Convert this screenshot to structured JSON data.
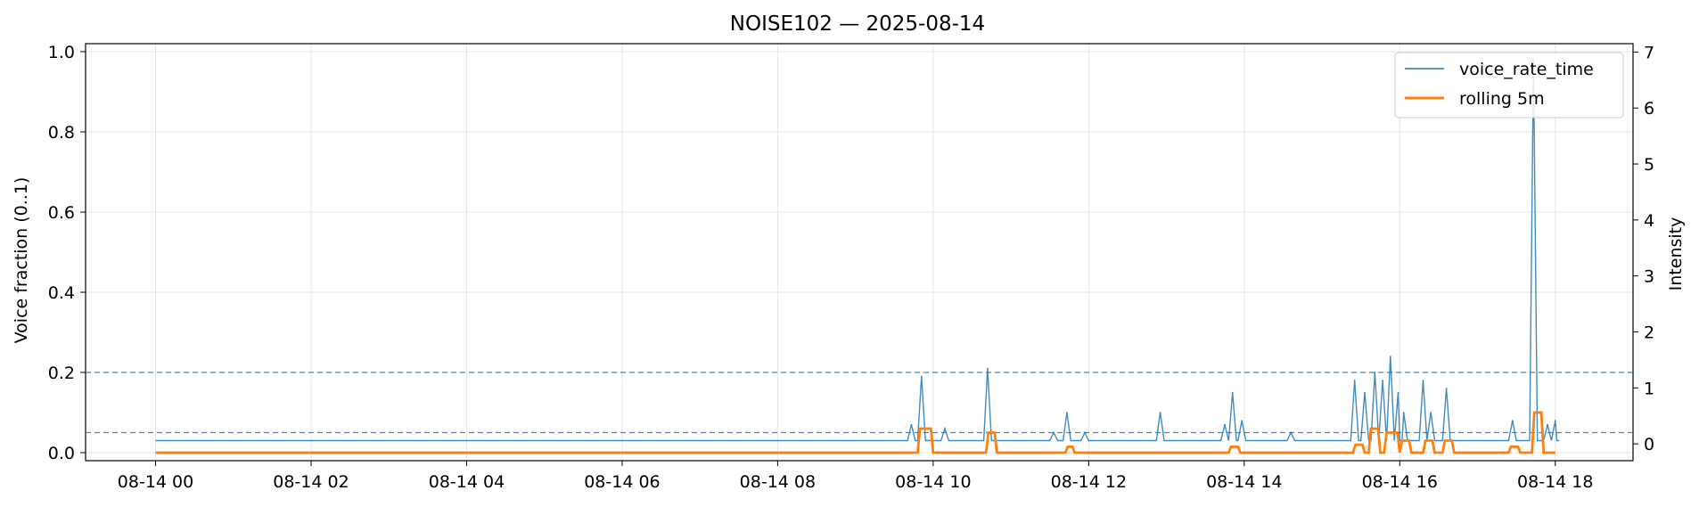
{
  "chart_data": {
    "type": "line",
    "title": "NOISE102 — 2025-08-14",
    "ylabel_left": "Voice fraction (0..1)",
    "ylabel_right": "Intensity",
    "xlim_hours": [
      -0.9,
      19.0
    ],
    "ylim_left": [
      -0.02,
      1.02
    ],
    "ylim_right": [
      -0.3,
      7.15
    ],
    "x_ticks": [
      {
        "hour": 0,
        "label": "08-14 00"
      },
      {
        "hour": 2,
        "label": "08-14 02"
      },
      {
        "hour": 4,
        "label": "08-14 04"
      },
      {
        "hour": 6,
        "label": "08-14 06"
      },
      {
        "hour": 8,
        "label": "08-14 08"
      },
      {
        "hour": 10,
        "label": "08-14 10"
      },
      {
        "hour": 12,
        "label": "08-14 12"
      },
      {
        "hour": 14,
        "label": "08-14 14"
      },
      {
        "hour": 16,
        "label": "08-14 16"
      },
      {
        "hour": 18,
        "label": "08-14 18"
      }
    ],
    "y_ticks_left": [
      {
        "value": 0.0,
        "label": "0.0"
      },
      {
        "value": 0.2,
        "label": "0.2"
      },
      {
        "value": 0.4,
        "label": "0.4"
      },
      {
        "value": 0.6,
        "label": "0.6"
      },
      {
        "value": 0.8,
        "label": "0.8"
      },
      {
        "value": 1.0,
        "label": "1.0"
      }
    ],
    "y_ticks_right": [
      {
        "value": 0,
        "label": "0"
      },
      {
        "value": 1,
        "label": "1"
      },
      {
        "value": 2,
        "label": "2"
      },
      {
        "value": 3,
        "label": "3"
      },
      {
        "value": 4,
        "label": "4"
      },
      {
        "value": 5,
        "label": "5"
      },
      {
        "value": 6,
        "label": "6"
      },
      {
        "value": 7,
        "label": "7"
      }
    ],
    "grid": true,
    "legend_position": "top-right",
    "reference_lines_left": [
      0.2,
      0.05
    ],
    "series": [
      {
        "name": "voice_rate_time",
        "color": "#1f77b4",
        "baseline": 0.03,
        "spikes": [
          [
            9.72,
            0.07
          ],
          [
            9.85,
            0.19
          ],
          [
            10.15,
            0.06
          ],
          [
            10.7,
            0.21
          ],
          [
            11.55,
            0.05
          ],
          [
            11.72,
            0.1
          ],
          [
            11.95,
            0.05
          ],
          [
            12.92,
            0.1
          ],
          [
            13.75,
            0.07
          ],
          [
            13.85,
            0.15
          ],
          [
            13.97,
            0.08
          ],
          [
            14.6,
            0.05
          ],
          [
            15.42,
            0.18
          ],
          [
            15.55,
            0.15
          ],
          [
            15.68,
            0.2
          ],
          [
            15.78,
            0.18
          ],
          [
            15.88,
            0.24
          ],
          [
            15.98,
            0.15
          ],
          [
            16.05,
            0.1
          ],
          [
            16.3,
            0.18
          ],
          [
            16.4,
            0.1
          ],
          [
            16.6,
            0.16
          ],
          [
            17.45,
            0.08
          ],
          [
            17.72,
            0.98
          ],
          [
            17.9,
            0.07
          ],
          [
            18.0,
            0.08
          ]
        ]
      },
      {
        "name": "rolling 5m",
        "color": "#ff7f0e",
        "baseline": 0.0,
        "pulses": [
          [
            9.8,
            10.0,
            0.06
          ],
          [
            10.68,
            10.82,
            0.05
          ],
          [
            11.7,
            11.82,
            0.015
          ],
          [
            13.8,
            13.95,
            0.015
          ],
          [
            15.4,
            15.55,
            0.02
          ],
          [
            15.6,
            15.75,
            0.06
          ],
          [
            15.8,
            16.0,
            0.05
          ],
          [
            16.0,
            16.15,
            0.03
          ],
          [
            16.3,
            16.45,
            0.03
          ],
          [
            16.55,
            16.7,
            0.03
          ],
          [
            17.4,
            17.55,
            0.015
          ],
          [
            17.7,
            17.85,
            0.1
          ]
        ]
      }
    ]
  }
}
